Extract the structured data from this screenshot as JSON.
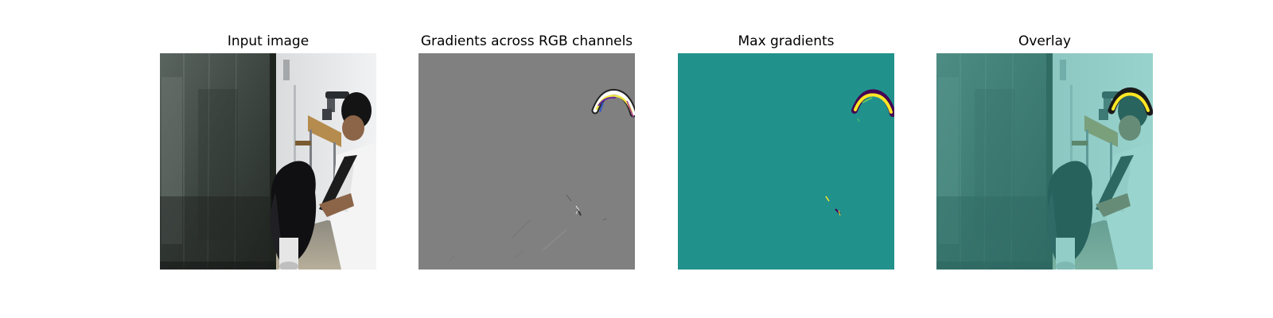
{
  "panels": [
    {
      "title": "Input image"
    },
    {
      "title": "Gradients across RGB channels"
    },
    {
      "title": "Max gradients"
    },
    {
      "title": "Overlay"
    }
  ],
  "colors": {
    "gradient_background": "#808080",
    "max_gradient_background": "#21918c",
    "overlay_tint": "#7fd0c8",
    "highlight_yellow": "#fde725",
    "highlight_purple": "#440154"
  }
}
